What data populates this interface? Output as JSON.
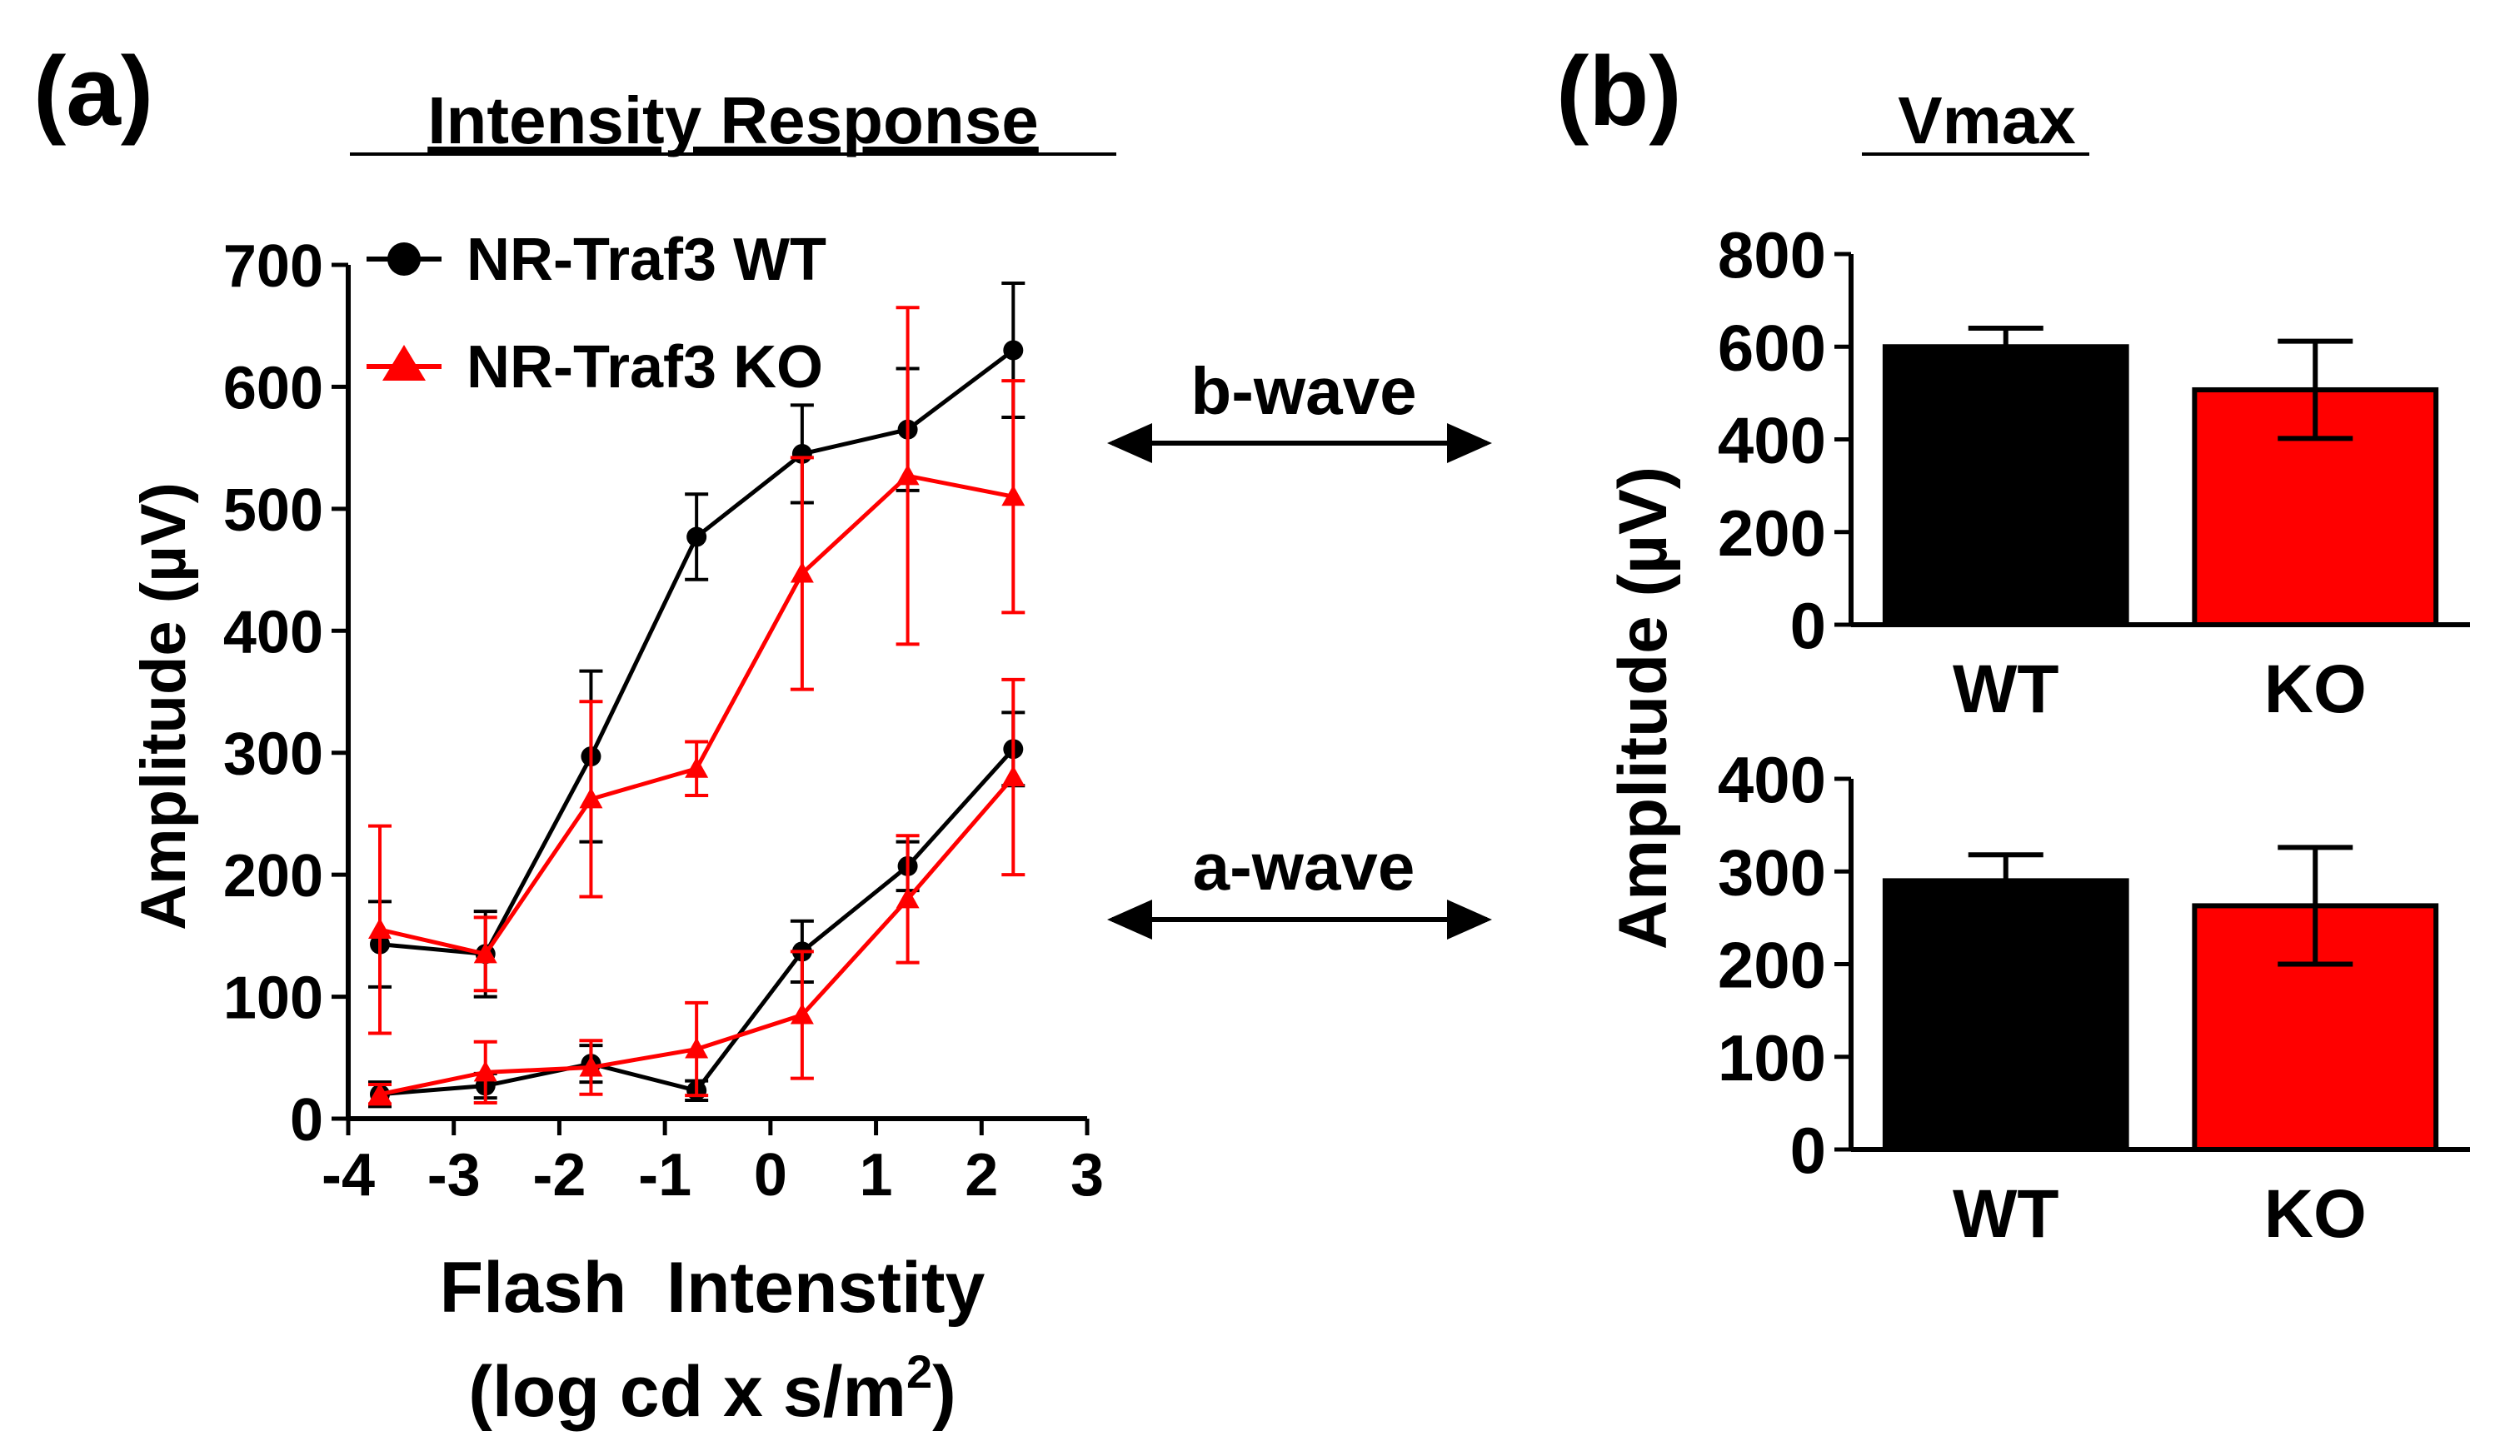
{
  "panels": {
    "a_label": "(a)",
    "b_label": "(b)"
  },
  "arrows": {
    "b_wave": "b-wave",
    "a_wave": "a-wave"
  },
  "colors": {
    "wt": "#000000",
    "ko": "#ff0000"
  },
  "chart_data": [
    {
      "id": "intensity",
      "type": "line",
      "title": "Intensity Response",
      "xlabel": "Flash  Intenstity",
      "xlabel2": "(log cd x s/m",
      "xlabel2_sup": "2",
      "xlabel2_end": ")",
      "ylabel": "Amplitude (µV)",
      "xlim": [
        -4,
        3
      ],
      "ylim": [
        0,
        700
      ],
      "xticks": [
        -4,
        -3,
        -2,
        -1,
        0,
        1,
        2,
        3
      ],
      "yticks": [
        0,
        100,
        200,
        300,
        400,
        500,
        600,
        700
      ],
      "legend": "top-left",
      "series": [
        {
          "name": "NR-Traf3 WT",
          "group": "b-wave",
          "color": "#000000",
          "marker": "circle",
          "x": [
            -3.7,
            -2.7,
            -1.7,
            -0.7,
            0.3,
            1.3,
            2.3
          ],
          "y": [
            143,
            135,
            297,
            477,
            545,
            565,
            630
          ],
          "err": [
            35,
            35,
            70,
            35,
            40,
            50,
            55
          ]
        },
        {
          "name": "NR-Traf3 KO",
          "group": "b-wave",
          "color": "#ff0000",
          "marker": "triangle",
          "x": [
            -3.7,
            -2.7,
            -1.7,
            -0.7,
            0.3,
            1.3,
            2.3
          ],
          "y": [
            155,
            135,
            262,
            287,
            447,
            527,
            510
          ],
          "err": [
            85,
            30,
            80,
            22,
            95,
            138,
            95
          ]
        },
        {
          "name": "NR-Traf3 WT",
          "group": "a-wave",
          "color": "#000000",
          "marker": "circle",
          "x": [
            -3.7,
            -2.7,
            -1.7,
            -0.7,
            0.3,
            1.3,
            2.3
          ],
          "y": [
            20,
            27,
            45,
            23,
            137,
            207,
            303
          ],
          "err": [
            10,
            10,
            15,
            8,
            25,
            20,
            30
          ]
        },
        {
          "name": "NR-Traf3 KO",
          "group": "a-wave",
          "color": "#ff0000",
          "marker": "triangle",
          "x": [
            -3.7,
            -2.7,
            -1.7,
            -0.7,
            0.3,
            1.3,
            2.3
          ],
          "y": [
            20,
            38,
            42,
            57,
            85,
            180,
            280
          ],
          "err": [
            8,
            25,
            22,
            38,
            52,
            52,
            80
          ]
        }
      ]
    },
    {
      "id": "vmax_b",
      "type": "bar",
      "title": "Vmax",
      "ylabel": "Amplitude  (µV)",
      "categories": [
        "WT",
        "KO"
      ],
      "values": [
        600,
        507
      ],
      "errors": [
        40,
        105
      ],
      "colors": [
        "#000000",
        "#ff0000"
      ],
      "ylim": [
        0,
        800
      ],
      "yticks": [
        0,
        200,
        400,
        600,
        800
      ]
    },
    {
      "id": "vmax_a",
      "type": "bar",
      "categories": [
        "WT",
        "KO"
      ],
      "values": [
        290,
        263
      ],
      "errors": [
        28,
        63
      ],
      "colors": [
        "#000000",
        "#ff0000"
      ],
      "ylim": [
        0,
        400
      ],
      "yticks": [
        0,
        100,
        200,
        300,
        400
      ]
    }
  ]
}
